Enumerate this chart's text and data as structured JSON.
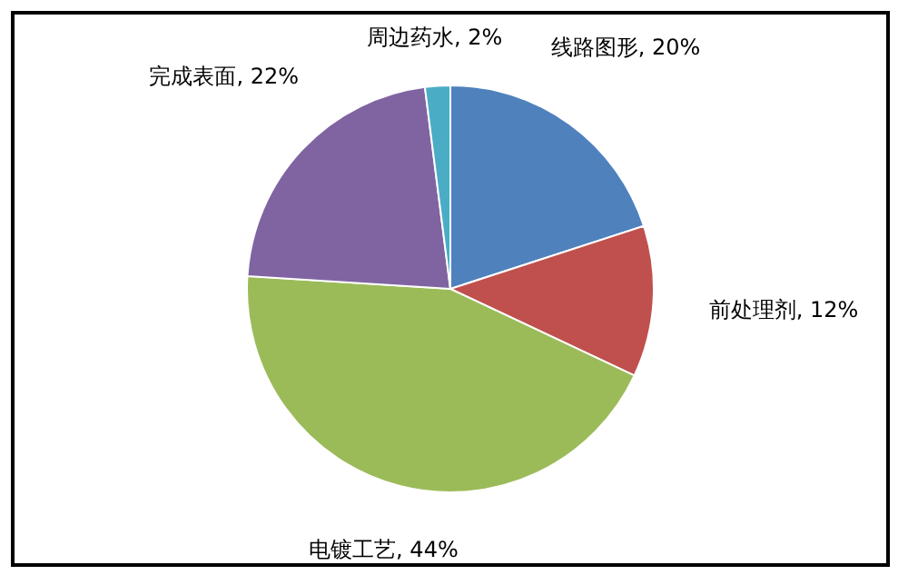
{
  "chart_data": {
    "type": "pie",
    "categories": [
      "线路图形",
      "前处理剂",
      "电镀工艺",
      "完成表面",
      "周边药水"
    ],
    "values": [
      20,
      12,
      44,
      22,
      2
    ],
    "value_labels": [
      "20%",
      "12%",
      "44%",
      "22%",
      "2%"
    ],
    "colors": [
      "#4f81bd",
      "#c0504d",
      "#9bbb59",
      "#8064a2",
      "#4bacc6"
    ]
  }
}
